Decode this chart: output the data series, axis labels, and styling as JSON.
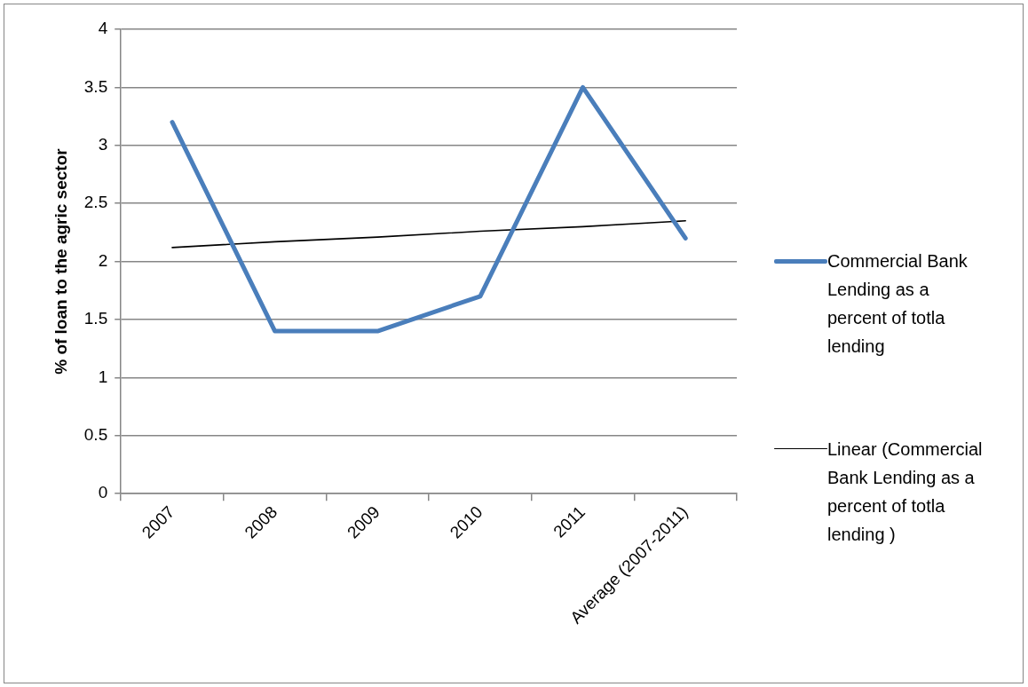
{
  "chart_data": {
    "type": "line",
    "ylabel": "% of loan to the agric sector",
    "categories": [
      "2007",
      "2008",
      "2009",
      "2010",
      "2011",
      "Average (2007-2011)"
    ],
    "series": [
      {
        "name": "Commercial Bank Lending as a percent of totla lending",
        "color": "#4a7ebb",
        "values": [
          3.2,
          1.4,
          1.4,
          1.7,
          3.5,
          2.2
        ]
      },
      {
        "name": "Linear (Commercial Bank Lending as a percent of totla lending )",
        "color": "#000000",
        "values": [
          2.12,
          2.17,
          2.21,
          2.26,
          2.3,
          2.35
        ]
      }
    ],
    "ylim": [
      0,
      4
    ],
    "yticks": [
      0,
      0.5,
      1,
      1.5,
      2,
      2.5,
      3,
      3.5,
      4
    ],
    "grid": "y",
    "legend": "right",
    "marker": "none",
    "line_style": "solid"
  }
}
